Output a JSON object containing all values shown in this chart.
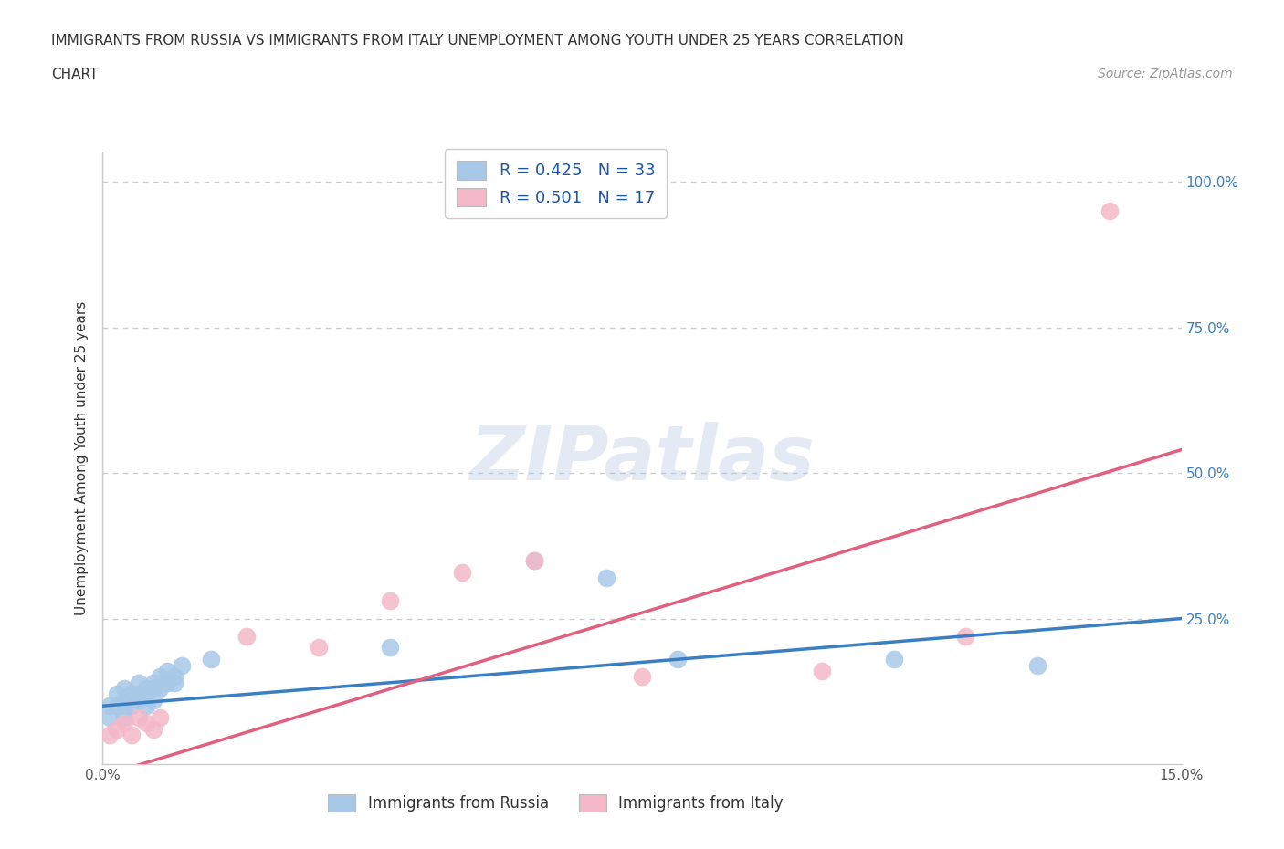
{
  "title_line1": "IMMIGRANTS FROM RUSSIA VS IMMIGRANTS FROM ITALY UNEMPLOYMENT AMONG YOUTH UNDER 25 YEARS CORRELATION",
  "title_line2": "CHART",
  "source_text": "Source: ZipAtlas.com",
  "ylabel": "Unemployment Among Youth under 25 years",
  "xlim": [
    0.0,
    0.15
  ],
  "ylim": [
    0.0,
    1.05
  ],
  "russia_color": "#a8c8e8",
  "italy_color": "#f4b8c8",
  "russia_line_color": "#3a7fc1",
  "italy_line_color": "#e06080",
  "russia_R": 0.425,
  "russia_N": 33,
  "italy_R": 0.501,
  "italy_N": 17,
  "russia_x": [
    0.001,
    0.001,
    0.002,
    0.002,
    0.003,
    0.003,
    0.003,
    0.003,
    0.004,
    0.004,
    0.005,
    0.005,
    0.005,
    0.006,
    0.006,
    0.006,
    0.007,
    0.007,
    0.007,
    0.008,
    0.008,
    0.009,
    0.009,
    0.01,
    0.01,
    0.011,
    0.015,
    0.04,
    0.06,
    0.07,
    0.08,
    0.11,
    0.13
  ],
  "russia_y": [
    0.1,
    0.08,
    0.12,
    0.1,
    0.13,
    0.11,
    0.09,
    0.08,
    0.12,
    0.1,
    0.14,
    0.12,
    0.11,
    0.13,
    0.12,
    0.1,
    0.14,
    0.13,
    0.11,
    0.15,
    0.13,
    0.16,
    0.14,
    0.15,
    0.14,
    0.17,
    0.18,
    0.2,
    0.35,
    0.32,
    0.18,
    0.18,
    0.17
  ],
  "italy_x": [
    0.001,
    0.002,
    0.003,
    0.004,
    0.005,
    0.006,
    0.007,
    0.008,
    0.02,
    0.03,
    0.04,
    0.05,
    0.06,
    0.075,
    0.1,
    0.12,
    0.14
  ],
  "italy_y": [
    0.05,
    0.06,
    0.07,
    0.05,
    0.08,
    0.07,
    0.06,
    0.08,
    0.22,
    0.2,
    0.28,
    0.33,
    0.35,
    0.15,
    0.16,
    0.22,
    0.95
  ],
  "russia_line_x": [
    0.0,
    0.15
  ],
  "russia_line_y": [
    0.1,
    0.25
  ],
  "italy_line_x": [
    0.0,
    0.15
  ],
  "italy_line_y": [
    -0.02,
    0.54
  ]
}
